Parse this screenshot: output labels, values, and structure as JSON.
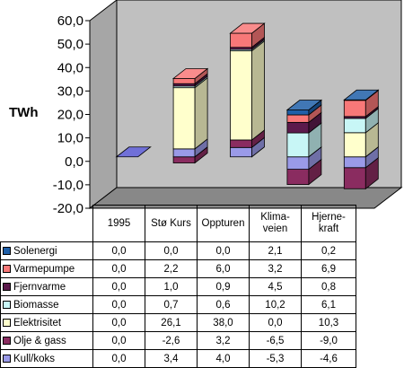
{
  "chart_data": {
    "type": "bar",
    "stacked": true,
    "view": "3d",
    "unit_label": "TWh",
    "categories": [
      "1995",
      "Stø Kurs",
      "Oppturen",
      "Klima-\nveien",
      "Hjerne-\nkraft"
    ],
    "ylim": [
      -20,
      60
    ],
    "yticks": [
      "60,0",
      "50,0",
      "40,0",
      "30,0",
      "20,0",
      "10,0",
      "0,0",
      "-10,0",
      "-20,0"
    ],
    "series": [
      {
        "name": "Solenergi",
        "color": "#1f5fa8",
        "values": [
          0.0,
          0.0,
          0.0,
          2.1,
          0.2
        ],
        "labels": [
          "0,0",
          "0,0",
          "0,0",
          "2,1",
          "0,2"
        ]
      },
      {
        "name": "Varmepumpe",
        "color": "#f87878",
        "values": [
          0.0,
          2.2,
          6.0,
          3.2,
          6.9
        ],
        "labels": [
          "0,0",
          "2,2",
          "6,0",
          "3,2",
          "6,9"
        ]
      },
      {
        "name": "Fjernvarme",
        "color": "#5c1a4c",
        "values": [
          0.0,
          1.0,
          0.9,
          4.5,
          0.8
        ],
        "labels": [
          "0,0",
          "1,0",
          "0,9",
          "4,5",
          "0,8"
        ]
      },
      {
        "name": "Biomasse",
        "color": "#c8f6f6",
        "values": [
          0.0,
          0.7,
          0.6,
          10.2,
          6.1
        ],
        "labels": [
          "0,0",
          "0,7",
          "0,6",
          "10,2",
          "6,1"
        ]
      },
      {
        "name": "Elektrisitet",
        "color": "#ffffcc",
        "values": [
          0.0,
          26.1,
          38.0,
          0.0,
          10.3
        ],
        "labels": [
          "0,0",
          "26,1",
          "38,0",
          "0,0",
          "10,3"
        ]
      },
      {
        "name": "Olje & gass",
        "color": "#8a2c60",
        "values": [
          0.0,
          -2.6,
          3.2,
          -6.5,
          -9.0
        ],
        "labels": [
          "0,0",
          "-2,6",
          "3,2",
          "-6,5",
          "-9,0"
        ]
      },
      {
        "name": "Kull/koks",
        "color": "#9a9ae8",
        "values": [
          0.0,
          3.4,
          4.0,
          -5.3,
          -4.6
        ],
        "labels": [
          "0,0",
          "3,4",
          "4,0",
          "-5,3",
          "-4,6"
        ]
      }
    ],
    "grid": false,
    "legend": "in data table",
    "colors": {
      "wall": "#c0c0c0",
      "floor": "#888888",
      "flat_1995": "#7070d8"
    }
  }
}
